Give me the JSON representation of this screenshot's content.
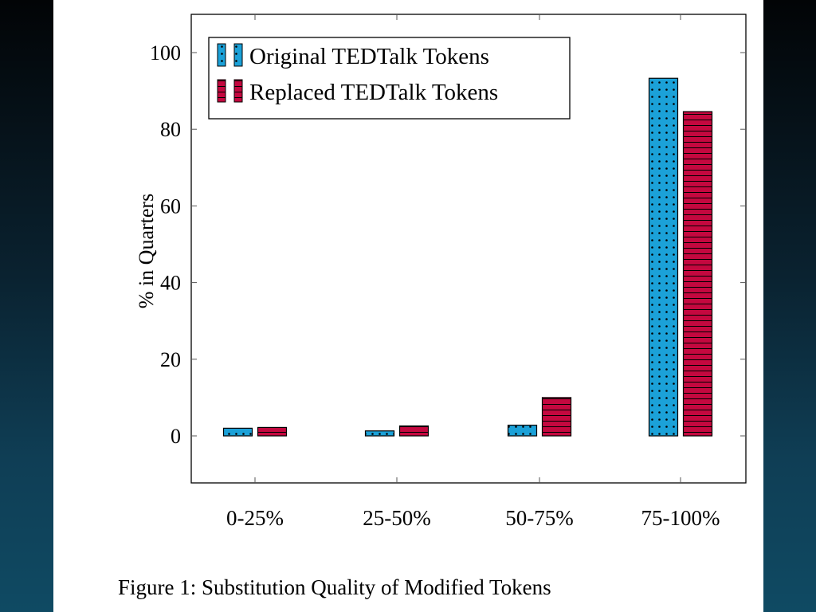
{
  "chart_data": {
    "type": "bar",
    "categories": [
      "0-25%",
      "25-50%",
      "50-75%",
      "75-100%"
    ],
    "series": [
      {
        "name": "Original TEDTalk Tokens",
        "values": [
          2,
          1.3,
          2.8,
          93.3
        ],
        "color": "#1ba1d8",
        "pattern": "dots"
      },
      {
        "name": "Replaced TEDTalk Tokens",
        "values": [
          2.2,
          2.6,
          10,
          84.6
        ],
        "color": "#c4083f",
        "pattern": "horizontal-lines"
      }
    ],
    "ylabel": "% in Quarters",
    "xlabel": "",
    "ylim": [
      -12.5,
      107
    ],
    "yticks": [
      0,
      20,
      40,
      60,
      80,
      100
    ],
    "legend_position": "top-left",
    "grid": false
  },
  "caption": "Figure 1: Substitution Quality of Modified Tokens"
}
